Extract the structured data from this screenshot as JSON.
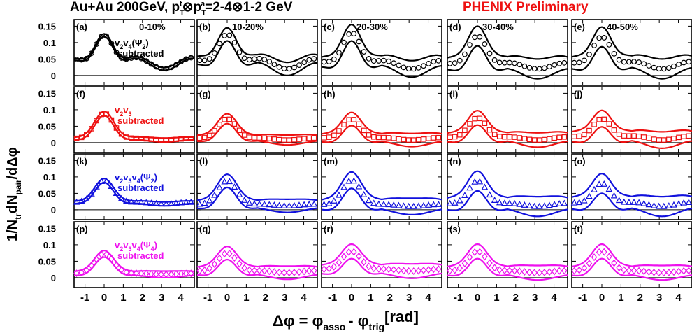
{
  "title_left": "Au+Au 200GeV, p",
  "title_left_parts": [
    "T",
    "t",
    "⊗p",
    "T",
    "a",
    "=2-4⊗1-2 GeV"
  ],
  "title_right": "PHENIX Preliminary",
  "ylabel_parts": [
    "1/N",
    "tr",
    "dN",
    "pair",
    "/dΔφ"
  ],
  "xlabel_parts": [
    "Δφ = φ",
    "asso",
    "- φ",
    "trig",
    "[rad]"
  ],
  "colors": {
    "row0": "#000000",
    "row1": "#ee1111",
    "row2": "#1111dd",
    "row3": "#ee11ee",
    "title_right": "#ee1111"
  },
  "columns": [
    "0-10%",
    "10-20%",
    "20-30%",
    "30-40%",
    "40-50%"
  ],
  "row_labels": [
    {
      "main": "v",
      "parts": [
        "v",
        "2",
        "v",
        "4",
        "(Ψ",
        "2",
        ")"
      ],
      "second": "subtracted"
    },
    {
      "main": "v",
      "parts": [
        "v",
        "2",
        "v",
        "3"
      ],
      "second": "subtracted"
    },
    {
      "main": "v",
      "parts": [
        "v",
        "2",
        "v",
        "3",
        "v",
        "4",
        "(Ψ",
        "2",
        ")"
      ],
      "second": "subtracted"
    },
    {
      "main": "v",
      "parts": [
        "v",
        "2",
        "v",
        "3",
        "v",
        "4",
        "(Ψ",
        "4",
        ")"
      ],
      "second": "subtracted"
    }
  ],
  "panel_letters": [
    "(a)",
    "(b)",
    "(c)",
    "(d)",
    "(e)",
    "(f)",
    "(g)",
    "(h)",
    "(i)",
    "(j)",
    "(k)",
    "(l)",
    "(m)",
    "(n)",
    "(o)",
    "(p)",
    "(q)",
    "(r)",
    "(s)",
    "(t)"
  ],
  "chart_data": {
    "type": "scatter",
    "grid": false,
    "xlim": [
      -1.57,
      4.71
    ],
    "ylim": [
      -0.03,
      0.17
    ],
    "xticks": [
      -1,
      0,
      1,
      2,
      3,
      4
    ],
    "yticks": [
      0,
      0.05,
      0.1,
      0.15
    ],
    "ytick_labels": [
      "0",
      "0.05",
      "0.1",
      "0.15"
    ],
    "markers": [
      "circle",
      "square",
      "triangle",
      "diamond"
    ],
    "rows": [
      {
        "main_amp": [
          0.13,
          0.13,
          0.13,
          0.115,
          0.115
        ],
        "away_amp": [
          0.055,
          0.05,
          0.04,
          0.03,
          0.035
        ],
        "band": [
          0.004,
          0.02,
          0.025,
          0.03,
          0.03
        ],
        "base": [
          0.02,
          0.02,
          0.02,
          0.02,
          0.02
        ]
      },
      {
        "main_amp": [
          0.085,
          0.07,
          0.07,
          0.075,
          0.075
        ],
        "away_amp": [
          0.008,
          0.01,
          0.012,
          0.015,
          0.02
        ],
        "band": [
          0.006,
          0.015,
          0.02,
          0.022,
          0.025
        ],
        "base": [
          0.008,
          0.008,
          0.008,
          0.008,
          0.008
        ]
      },
      {
        "main_amp": [
          0.075,
          0.08,
          0.085,
          0.085,
          0.08
        ],
        "away_amp": [
          0.008,
          0.008,
          0.01,
          0.015,
          0.02
        ],
        "band": [
          0.006,
          0.02,
          0.025,
          0.03,
          0.03
        ],
        "base": [
          0.018,
          0.012,
          0.01,
          0.01,
          0.01
        ]
      },
      {
        "main_amp": [
          0.065,
          0.065,
          0.065,
          0.07,
          0.07
        ],
        "away_amp": [
          0.005,
          0.01,
          0.01,
          0.01,
          0.01
        ],
        "band": [
          0.01,
          0.02,
          0.022,
          0.022,
          0.022
        ],
        "base": [
          0.01,
          0.015,
          0.02,
          0.015,
          0.015
        ]
      }
    ]
  }
}
